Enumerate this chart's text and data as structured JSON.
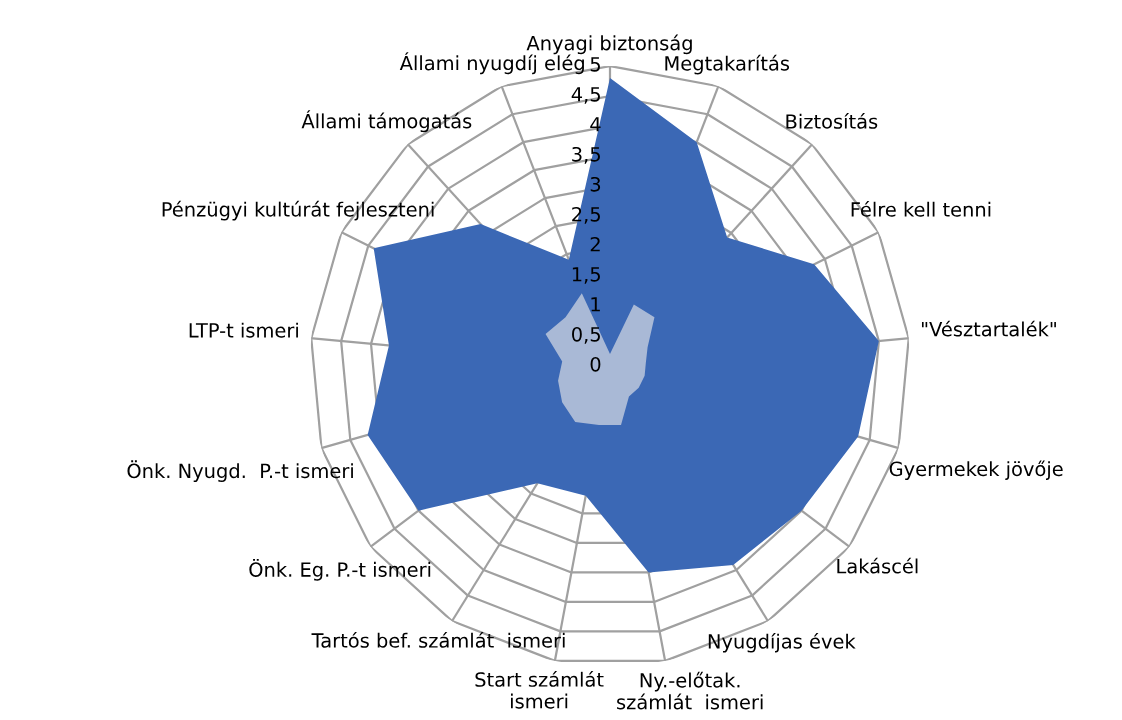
{
  "chart_data": {
    "type": "radar",
    "categories": [
      "Anyagi biztonság",
      "Megtakarítás",
      "Biztosítás",
      "Félre kell tenni",
      "\"Vésztartalék\"",
      "Gyermekek jövője",
      "Lakáscél",
      "Nyugdíjas évek",
      "Ny.-előtak. számlát  ismeri",
      "Start számlát  ismeri",
      "Tartós bef. számlát  ismeri",
      "Önk. Eg. P.-t ismeri",
      "Önk. Nyugd.  P.-t ismeri",
      "LTP-t ismeri",
      "Pénzügyi kultúrát fejleszteni",
      "Állami támogatás",
      "Állami nyugdíj elég"
    ],
    "series": [
      {
        "color": "#3b68b5",
        "values": [
          4.8,
          4.0,
          2.9,
          3.8,
          4.5,
          4.3,
          4.0,
          3.9,
          3.5,
          2.2,
          2.3,
          4.0,
          4.2,
          3.7,
          4.4,
          3.2,
          1.9
        ]
      },
      {
        "color": "#a9b9d6",
        "values": [
          0.2,
          1.1,
          1.1,
          0.7,
          0.6,
          0.6,
          0.6,
          0.6,
          1.0,
          1.0,
          1.1,
          1.0,
          0.9,
          0.8,
          1.2,
          1.1,
          1.3
        ]
      }
    ],
    "ylim": [
      0,
      5
    ],
    "yticks": [
      0,
      {
        "value": 0.5,
        "label": "0,5"
      },
      1,
      {
        "value": 1.5,
        "label": "1,5"
      },
      2,
      {
        "value": 2.5,
        "label": "2,5"
      },
      3,
      {
        "value": 3.5,
        "label": "3,5"
      },
      4,
      {
        "value": 4.5,
        "label": "4,5"
      },
      5
    ],
    "grid": true,
    "legend": false
  }
}
